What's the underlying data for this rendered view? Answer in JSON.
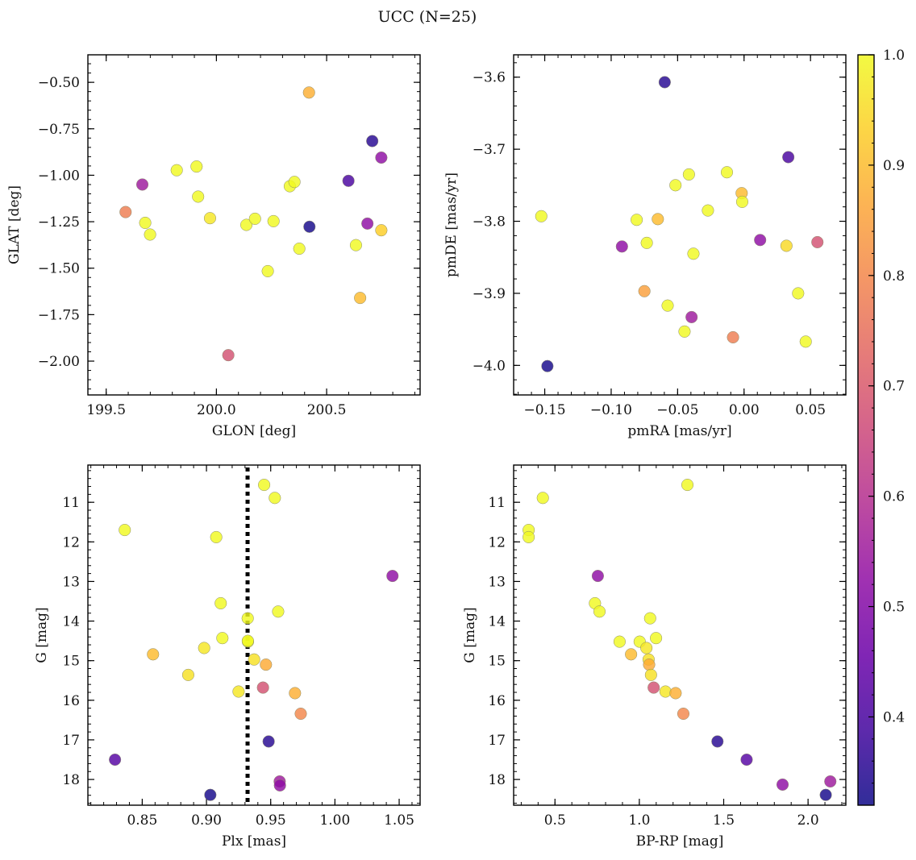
{
  "title": "UCC (N=25)",
  "colorbar": {
    "range": [
      0.32,
      1.0
    ],
    "ticks": [
      0.4,
      0.5,
      0.6,
      0.7,
      0.8,
      0.9,
      1.0
    ],
    "minor_step": 0.02,
    "colormap": "plasma"
  },
  "reference_line": {
    "panel": 2,
    "x": 0.932,
    "color": "#000000"
  },
  "chart_data": [
    {
      "type": "scatter",
      "xlabel": "GLON [deg]",
      "ylabel": "GLAT [deg]",
      "xlim": [
        199.417,
        200.924
      ],
      "ylim": [
        -2.182,
        -0.352
      ],
      "xticks": [
        199.5,
        200.0,
        200.5
      ],
      "yticks": [
        -2.0,
        -1.75,
        -1.5,
        -1.25,
        -1.0,
        -0.75,
        -0.5
      ],
      "xdec": 1,
      "ydec": 2,
      "xminor": 0.1,
      "yminor": 0.05,
      "invert_y": false,
      "x": [
        199.588,
        199.664,
        199.677,
        199.699,
        199.82,
        199.91,
        199.917,
        199.971,
        200.054,
        200.136,
        200.175,
        200.259,
        200.233,
        200.333,
        200.354,
        200.376,
        200.42,
        200.422,
        200.599,
        200.633,
        200.652,
        200.685,
        200.707,
        200.748,
        200.748
      ],
      "y": [
        -1.198,
        -1.05,
        -1.256,
        -1.319,
        -0.973,
        -0.953,
        -1.115,
        -1.231,
        -1.968,
        -1.267,
        -1.234,
        -1.247,
        -1.516,
        -1.059,
        -1.036,
        -1.395,
        -0.555,
        -1.277,
        -1.03,
        -1.376,
        -1.66,
        -1.26,
        -0.816,
        -1.296,
        -0.905
      ],
      "c": [
        0.78,
        0.55,
        1.0,
        1.0,
        1.0,
        1.0,
        1.0,
        0.97,
        0.68,
        1.0,
        1.0,
        1.0,
        1.0,
        1.0,
        1.0,
        1.0,
        0.88,
        0.33,
        0.4,
        1.0,
        0.9,
        0.52,
        0.35,
        0.93,
        0.52
      ]
    },
    {
      "type": "scatter",
      "xlabel": "pmRA [mas/yr]",
      "ylabel": "pmDE [mas/yr]",
      "xlim": [
        -0.1734,
        0.0766
      ],
      "ylim": [
        -4.041,
        -3.569
      ],
      "xticks": [
        -0.15,
        -0.1,
        -0.05,
        0.0,
        0.05
      ],
      "yticks": [
        -4.0,
        -3.9,
        -3.8,
        -3.7,
        -3.6
      ],
      "xdec": 2,
      "ydec": 1,
      "xminor": 0.01,
      "yminor": 0.02,
      "invert_y": false,
      "x": [
        -0.1526,
        -0.148,
        -0.0919,
        -0.0808,
        -0.0732,
        -0.0649,
        -0.075,
        -0.0597,
        -0.0575,
        -0.0516,
        -0.0448,
        -0.0415,
        -0.0395,
        -0.0381,
        -0.0272,
        -0.0129,
        -0.0083,
        -0.0018,
        -0.0014,
        0.0121,
        0.0319,
        0.0333,
        0.0407,
        0.0464,
        0.0552
      ],
      "y": [
        -3.793,
        -4.001,
        -3.835,
        -3.798,
        -3.83,
        -3.797,
        -3.897,
        -3.607,
        -3.917,
        -3.75,
        -3.953,
        -3.735,
        -3.933,
        -3.845,
        -3.785,
        -3.732,
        -3.961,
        -3.761,
        -3.773,
        -3.826,
        -3.834,
        -3.711,
        -3.9,
        -3.967,
        -3.829
      ],
      "c": [
        1.0,
        0.33,
        0.52,
        1.0,
        1.0,
        0.9,
        0.85,
        0.35,
        1.0,
        1.0,
        1.0,
        1.0,
        0.55,
        1.0,
        1.0,
        1.0,
        0.78,
        0.9,
        1.0,
        0.52,
        0.95,
        0.4,
        1.0,
        1.0,
        0.68
      ]
    },
    {
      "type": "scatter",
      "xlabel": "Plx [mas]",
      "ylabel": "G [mag]",
      "xlim": [
        0.8077,
        1.0663
      ],
      "ylim": [
        18.65,
        10.06
      ],
      "xticks": [
        0.85,
        0.9,
        0.95,
        1.0,
        1.05
      ],
      "yticks": [
        11,
        12,
        13,
        14,
        15,
        16,
        17,
        18
      ],
      "xdec": 2,
      "ydec": 0,
      "xminor": 0.01,
      "yminor": 0.2,
      "invert_y": true,
      "x": [
        0.9449,
        0.9532,
        0.8364,
        0.9076,
        1.0448,
        0.9111,
        0.9558,
        0.9321,
        0.9124,
        0.9323,
        0.9322,
        0.8982,
        0.8584,
        0.9371,
        0.9463,
        0.8858,
        0.925,
        0.944,
        0.9689,
        0.9734,
        0.9484,
        0.8288,
        0.957,
        0.9572,
        0.903
      ],
      "y": [
        10.56,
        10.89,
        11.7,
        11.88,
        12.86,
        13.55,
        13.76,
        13.93,
        14.43,
        14.52,
        14.5,
        14.68,
        14.84,
        14.97,
        15.1,
        15.36,
        15.78,
        15.68,
        15.82,
        16.34,
        17.04,
        17.5,
        18.05,
        18.15,
        18.39
      ],
      "c": [
        1.0,
        1.0,
        1.0,
        1.0,
        0.52,
        1.0,
        1.0,
        1.0,
        1.0,
        1.0,
        1.0,
        0.97,
        0.9,
        0.96,
        0.87,
        0.96,
        0.97,
        0.68,
        0.88,
        0.8,
        0.35,
        0.42,
        0.55,
        0.52,
        0.33
      ]
    },
    {
      "type": "scatter",
      "xlabel": "BP-RP [mag]",
      "ylabel": "G [mag]",
      "xlim": [
        0.255,
        2.224
      ],
      "ylim": [
        18.65,
        10.06
      ],
      "xticks": [
        0.5,
        1.0,
        1.5,
        2.0
      ],
      "yticks": [
        11,
        12,
        13,
        14,
        15,
        16,
        17,
        18
      ],
      "xdec": 1,
      "ydec": 0,
      "xminor": 0.1,
      "yminor": 0.2,
      "invert_y": true,
      "x": [
        1.285,
        0.428,
        0.344,
        0.344,
        0.754,
        0.737,
        0.764,
        1.064,
        1.099,
        0.883,
        1.002,
        1.042,
        0.951,
        1.055,
        1.058,
        1.069,
        1.155,
        1.085,
        1.215,
        1.261,
        1.463,
        1.636,
        2.132,
        1.849,
        2.105
      ],
      "y": [
        10.56,
        10.89,
        11.7,
        11.88,
        12.86,
        13.55,
        13.76,
        13.93,
        14.43,
        14.52,
        14.52,
        14.68,
        14.84,
        14.97,
        15.1,
        15.36,
        15.78,
        15.68,
        15.82,
        16.34,
        17.04,
        17.5,
        18.05,
        18.13,
        18.39
      ],
      "c": [
        1.0,
        1.0,
        1.0,
        1.0,
        0.52,
        1.0,
        1.0,
        1.0,
        1.0,
        1.0,
        1.0,
        0.97,
        0.9,
        0.96,
        0.87,
        0.96,
        0.97,
        0.68,
        0.88,
        0.8,
        0.35,
        0.42,
        0.55,
        0.52,
        0.33
      ]
    }
  ]
}
